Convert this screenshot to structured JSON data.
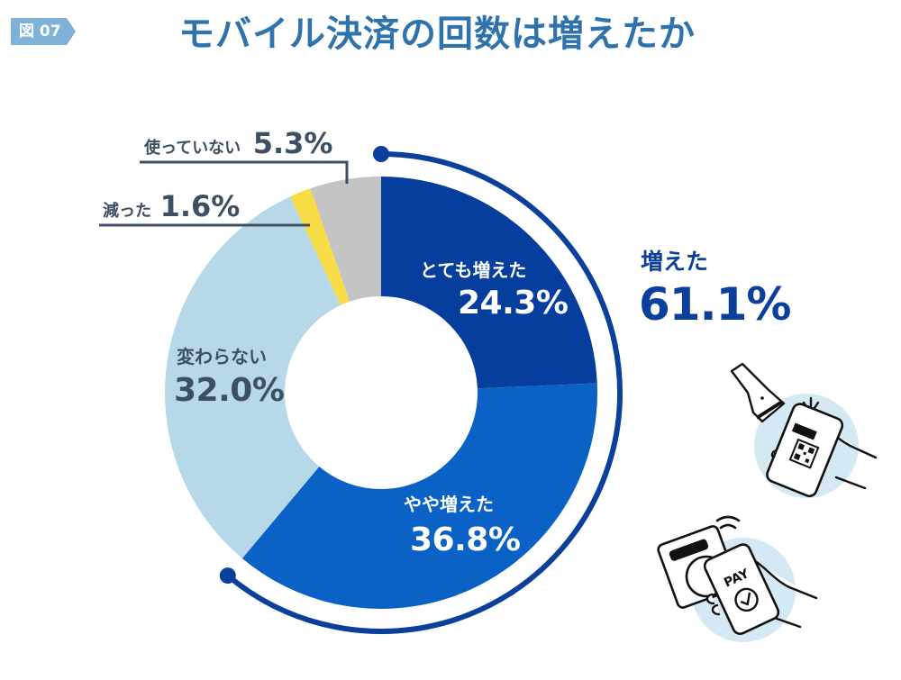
{
  "figure": {
    "badge": "図 07",
    "title": "モバイル決済の回数は増えたか",
    "badge_color": "#7eb2d8",
    "title_color": "#2f73ad"
  },
  "chart_data": {
    "type": "pie",
    "variant": "donut",
    "title": "モバイル決済の回数は増えたか",
    "categories": [
      "とても増えた",
      "やや増えた",
      "変わらない",
      "減った",
      "使っていない"
    ],
    "values": [
      24.3,
      36.8,
      32.0,
      1.6,
      5.3
    ],
    "labels": [
      "24.3%",
      "36.8%",
      "32.0%",
      "1.6%",
      "5.3%"
    ],
    "colors": [
      "#053e9c",
      "#0a62c7",
      "#b7d8e8",
      "#f7dc45",
      "#c4c4c4"
    ],
    "start_angle_deg": 0,
    "direction": "clockwise",
    "unit": "%",
    "annotation": {
      "label": "増えた",
      "value": "61.1%",
      "covers": [
        "とても増えた",
        "やや増えた"
      ],
      "arc_color": "#0a3f9c"
    },
    "legend": "none (direct labels)"
  },
  "labels": {
    "very_increased": {
      "name": "とても増えた",
      "value": "24.3%"
    },
    "slightly_increased": {
      "name": "やや増えた",
      "value": "36.8%"
    },
    "unchanged": {
      "name": "変わらない",
      "value": "32.0%"
    },
    "decreased": {
      "name": "減った",
      "value": "1.6%"
    },
    "not_used": {
      "name": "使っていない",
      "value": "5.3%"
    },
    "increased_total": {
      "name": "増えた",
      "value": "61.1%"
    }
  },
  "illustrations": {
    "top": "barcode-scanner-phone-qr-icon",
    "bottom": "nfc-card-reader-phone-pay-icon",
    "pay_text": "PAY"
  }
}
